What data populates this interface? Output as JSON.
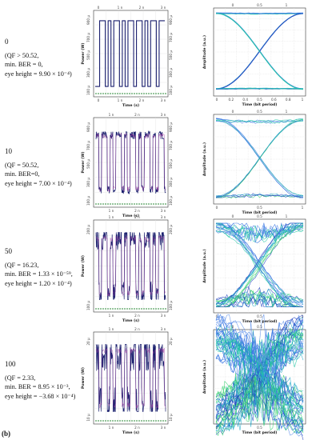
{
  "subfigure_label": "(b)",
  "rows": [
    {
      "value": "0",
      "lines": [
        "(QF > 50.52,",
        "min. BER = 0,",
        "eye height = 9.90 × 10⁻⁴)"
      ]
    },
    {
      "value": "10",
      "lines": [
        "(QF = 50.52,",
        "min. BER=0,",
        "eye height = 7.00 × 10⁻⁴)"
      ]
    },
    {
      "value": "50",
      "lines": [
        "(QF = 16.23,",
        "min. BER = 1.33 × 10⁻⁵⁹,",
        "eye height = 1.20 × 10⁻⁴)"
      ]
    },
    {
      "value": "100",
      "lines": [
        "(QF = 2.33,",
        "min. BER = 8.95 × 10⁻³,",
        "eye height = −3.68 × 10⁻⁴)"
      ]
    }
  ],
  "chart_data": [
    {
      "type": "line",
      "panel": "time-domain",
      "row": 0,
      "xlabel": "Time (s)",
      "ylabel": "Power (W)",
      "x_ticks": [
        "0",
        "1 n",
        "2 n",
        "3 n"
      ],
      "y_ticks": [
        "100 µ",
        "300 µ",
        "500 µ",
        "700 µ",
        "900 µ"
      ],
      "colors": {
        "signal": "#1a1f6e",
        "baseline": "#2e8b3a"
      }
    },
    {
      "type": "line",
      "panel": "time-domain",
      "row": 1,
      "xlabel": "Time (s)",
      "ylabel": "Power (W)",
      "x_ticks": [
        "1 n",
        "2 n",
        "3 n"
      ],
      "y_ticks": [
        "100 µ",
        "300 µ",
        "500 µ",
        "700 µ",
        "900 µ"
      ]
    },
    {
      "type": "line",
      "panel": "time-domain",
      "row": 2,
      "xlabel": "Time (s)",
      "ylabel": "Power (W)",
      "x_ticks": [
        "1 n",
        "2 n",
        "3 n"
      ],
      "y_ticks": [
        "100 µ",
        "200 µ"
      ]
    },
    {
      "type": "line",
      "panel": "time-domain",
      "row": 3,
      "xlabel": "Time (s)",
      "ylabel": "Power (W)",
      "x_ticks": [
        "1 n",
        "2 n",
        "3 n"
      ],
      "y_ticks": [
        "10 µ",
        "20 µ"
      ]
    },
    {
      "type": "line",
      "panel": "eye-diagram",
      "row": 0,
      "xlabel": "Time (bit period)",
      "ylabel": "Amplitude (a.u.)",
      "x_ticks": [
        "0",
        "0.2",
        "0.4",
        "0.5",
        "0.6",
        "0.8",
        "1"
      ],
      "top_ticks": [
        "0",
        "0.5",
        "1"
      ],
      "grid": true
    },
    {
      "type": "line",
      "panel": "eye-diagram",
      "row": 1,
      "xlabel": "Time (bit period)",
      "ylabel": "Amplitude (a.u.)",
      "x_ticks": [
        "0",
        "0.5",
        "1"
      ],
      "grid": true
    },
    {
      "type": "line",
      "panel": "eye-diagram",
      "row": 2,
      "xlabel": "Time (bit period)",
      "ylabel": "Amplitude (a.u.)",
      "x_ticks": [
        "0",
        "0.5",
        "1"
      ],
      "grid": true
    },
    {
      "type": "line",
      "panel": "eye-diagram",
      "row": 3,
      "xlabel": "Time (bit period)",
      "ylabel": "Amplitude (a.u.)",
      "x_ticks": [
        "0",
        "0.5",
        "1"
      ],
      "grid": true
    }
  ]
}
